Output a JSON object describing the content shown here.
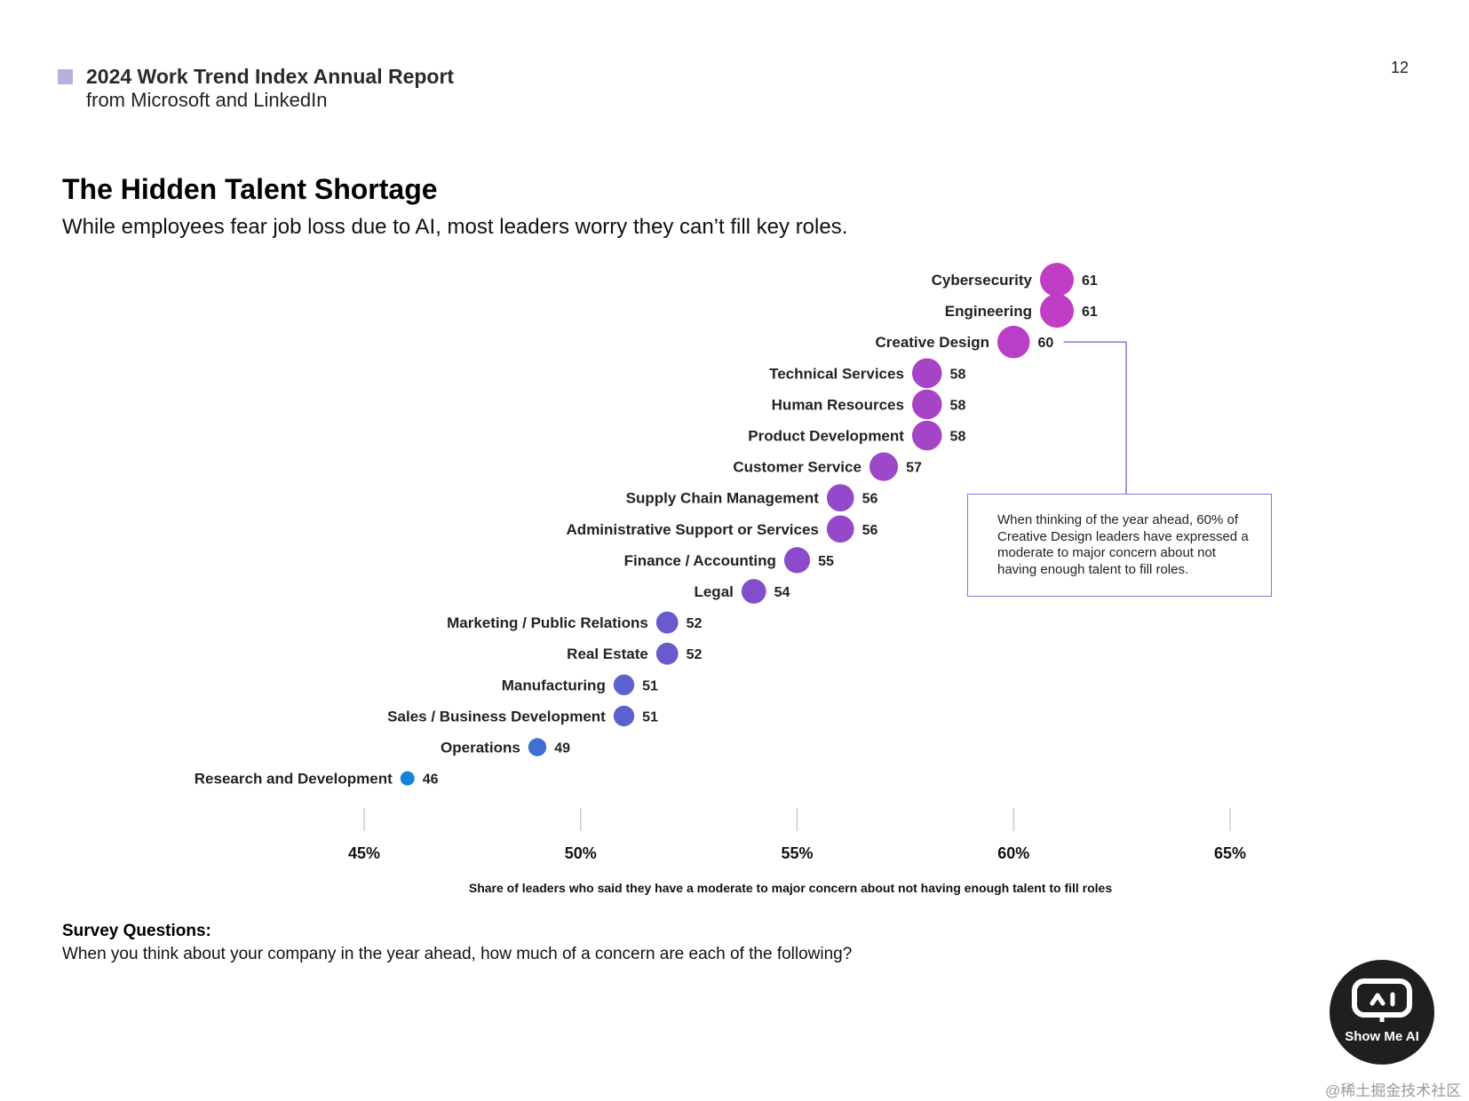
{
  "header": {
    "title": "2024 Work Trend Index Annual Report",
    "subtitle": "from Microsoft and LinkedIn",
    "accent_color": "#b9aee0"
  },
  "page_number": "12",
  "chart_data": {
    "type": "scatter",
    "title": "The Hidden Talent Shortage",
    "subtitle": "While employees fear job loss due to AI, most leaders worry they can’t fill key roles.",
    "xlabel": "Share of leaders who said they have a moderate to major concern about not having enough talent to fill roles",
    "ylabel": "",
    "x_ticks": [
      "45%",
      "50%",
      "55%",
      "60%",
      "65%"
    ],
    "x_tick_values": [
      45,
      50,
      55,
      60,
      65
    ],
    "xlim": [
      45,
      65
    ],
    "grid": false,
    "legend": "none",
    "points": [
      {
        "label": "Cybersecurity",
        "value": 61
      },
      {
        "label": "Engineering",
        "value": 61
      },
      {
        "label": "Creative Design",
        "value": 60
      },
      {
        "label": "Technical Services",
        "value": 58
      },
      {
        "label": "Human Resources",
        "value": 58
      },
      {
        "label": "Product Development",
        "value": 58
      },
      {
        "label": "Customer Service",
        "value": 57
      },
      {
        "label": "Supply Chain Management",
        "value": 56
      },
      {
        "label": "Administrative Support or Services",
        "value": 56
      },
      {
        "label": "Finance / Accounting",
        "value": 55
      },
      {
        "label": "Legal",
        "value": 54
      },
      {
        "label": "Marketing / Public Relations",
        "value": 52
      },
      {
        "label": "Real Estate",
        "value": 52
      },
      {
        "label": "Manufacturing",
        "value": 51
      },
      {
        "label": "Sales / Business Development",
        "value": 51
      },
      {
        "label": "Operations",
        "value": 49
      },
      {
        "label": "Research and Development",
        "value": 46
      }
    ],
    "annotation": {
      "target": "Creative Design",
      "text": "When thinking of the year ahead, 60% of Creative Design leaders have expressed a moderate to major concern about not having enough talent to fill roles."
    },
    "colors": {
      "high": "#c13dc5",
      "mid": "#7e4fcc",
      "low": "#2f73d4",
      "lowest": "#1584d6",
      "axis": "#cccccc",
      "callout_border": "#8a78d0"
    }
  },
  "survey": {
    "heading": "Survey Questions:",
    "text": "When you think about your company in the year ahead, how much of a concern are each of the following?"
  },
  "badge": {
    "label": "Show Me AI",
    "icon": "robot-face-icon"
  },
  "watermark": "@稀土掘金技术社区"
}
